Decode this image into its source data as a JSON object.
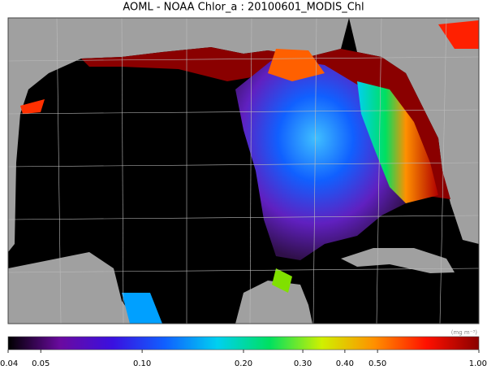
{
  "title": "AOML - NOAA Chlor_a : 20100601_MODIS_Chl",
  "colorbar": {
    "scale": "log",
    "lim": [
      0.04,
      1
    ],
    "ticks": [
      0.04,
      0.05,
      {
        "value": 0.1,
        "label": "0.10"
      },
      {
        "value": 0.2,
        "label": "0.20"
      },
      {
        "value": 0.3,
        "label": "0.30"
      },
      {
        "value": 0.4,
        "label": "0.40"
      },
      {
        "value": 0.5,
        "label": "0.50"
      },
      {
        "value": 1,
        "label": "1.00"
      }
    ],
    "unit": "(mg m⁻³)",
    "colors": [
      "#000000",
      "#6a0aa0",
      "#3a10e0",
      "#1060ff",
      "#00d0f0",
      "#00e060",
      "#d0f000",
      "#ff9000",
      "#ff1000",
      "#8a0000"
    ]
  }
}
